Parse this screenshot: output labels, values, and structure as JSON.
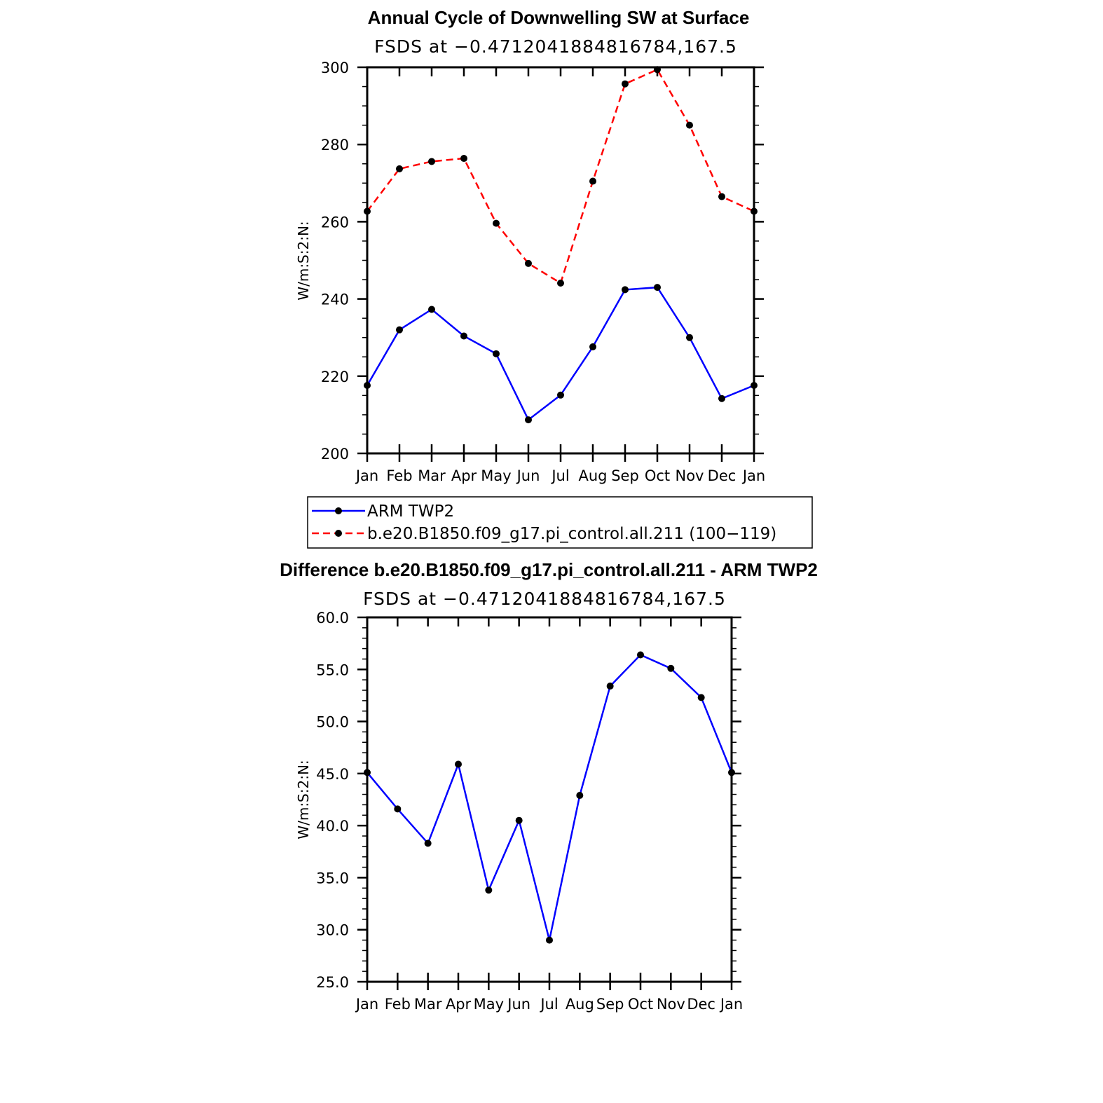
{
  "chart_data": [
    {
      "type": "line",
      "title": "Annual Cycle of Downwelling SW at Surface",
      "subtitle": "FSDS at −0.4712041884816784,167.5",
      "ylabel": "W/m:S:2:N:",
      "xlabel": "",
      "categories": [
        "Jan",
        "Feb",
        "Mar",
        "Apr",
        "May",
        "Jun",
        "Jul",
        "Aug",
        "Sep",
        "Oct",
        "Nov",
        "Dec",
        "Jan"
      ],
      "ylim": [
        200,
        300
      ],
      "yticks": [
        "200",
        "220",
        "240",
        "260",
        "280",
        "300"
      ],
      "y_minor_step": 5,
      "grid": false,
      "legend_placement": "bottom",
      "series": [
        {
          "name": "ARM TWP2",
          "color": "#0000ff",
          "dash": "solid",
          "values": [
            217.6,
            232.0,
            237.3,
            230.4,
            225.8,
            208.7,
            215.1,
            227.6,
            242.4,
            243.0,
            230.0,
            214.2,
            217.6
          ]
        },
        {
          "name": "b.e20.B1850.f09_g17.pi_control.all.211 (100−119)",
          "color": "#ff0000",
          "dash": "dashed",
          "values": [
            262.7,
            273.7,
            275.6,
            276.4,
            259.6,
            249.2,
            244.1,
            270.5,
            295.7,
            299.4,
            285.0,
            266.5,
            262.7
          ]
        }
      ]
    },
    {
      "type": "line",
      "title": "Difference b.e20.B1850.f09_g17.pi_control.all.211 - ARM TWP2",
      "subtitle": "FSDS at −0.4712041884816784,167.5",
      "ylabel": "W/m:S:2:N:",
      "xlabel": "",
      "categories": [
        "Jan",
        "Feb",
        "Mar",
        "Apr",
        "May",
        "Jun",
        "Jul",
        "Aug",
        "Sep",
        "Oct",
        "Nov",
        "Dec",
        "Jan"
      ],
      "ylim": [
        25,
        60
      ],
      "yticks": [
        "25.0",
        "30.0",
        "35.0",
        "40.0",
        "45.0",
        "50.0",
        "55.0",
        "60.0"
      ],
      "y_minor_step": 1,
      "grid": false,
      "series": [
        {
          "color": "#0000ff",
          "dash": "solid",
          "values": [
            45.1,
            41.6,
            38.3,
            45.9,
            33.8,
            40.5,
            29.0,
            42.9,
            53.4,
            56.4,
            55.1,
            52.3,
            45.1
          ]
        }
      ]
    }
  ]
}
